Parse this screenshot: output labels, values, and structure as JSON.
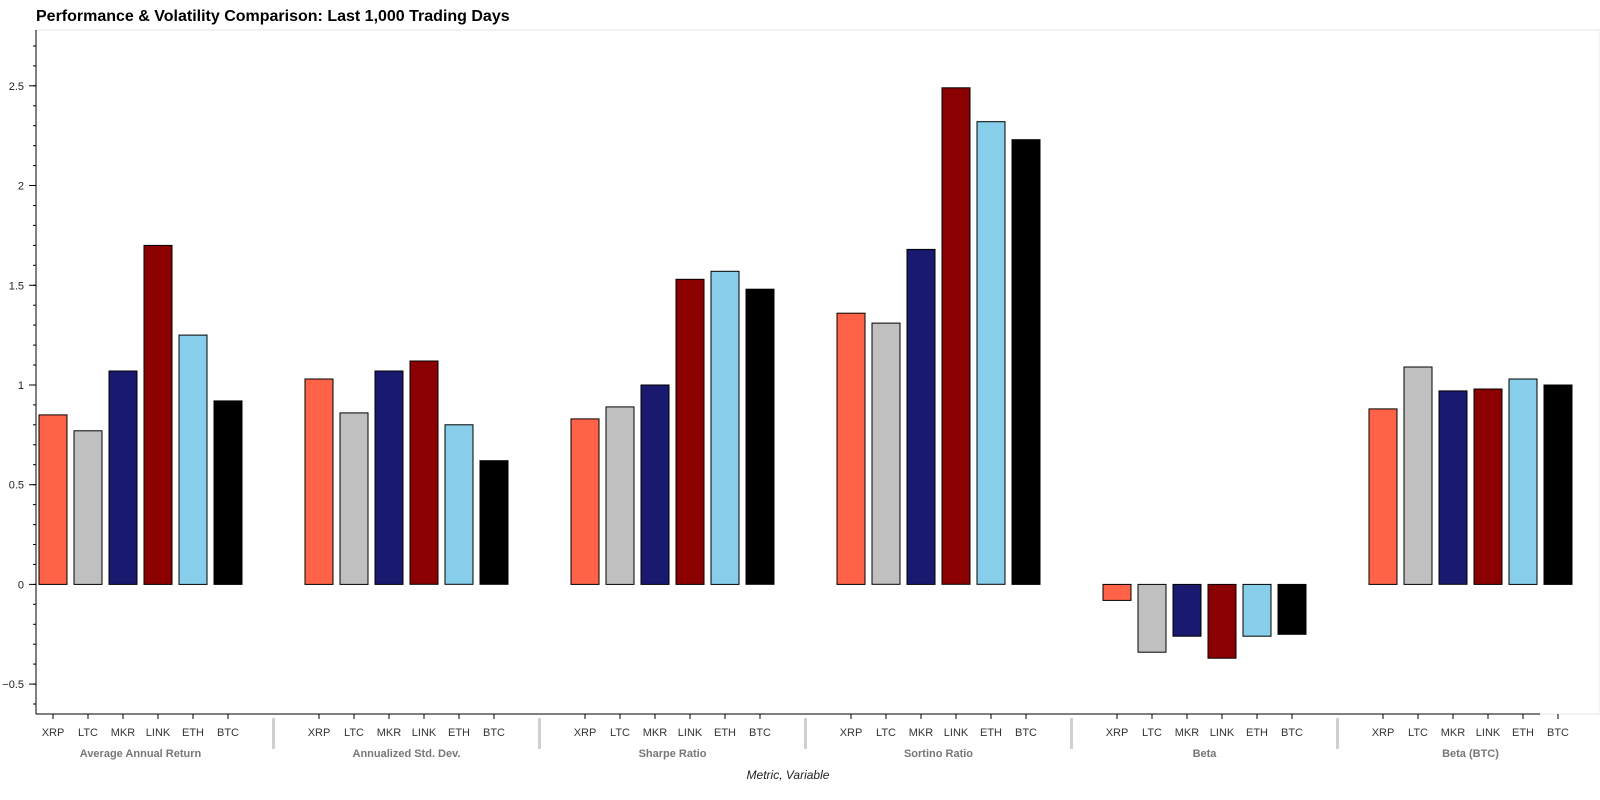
{
  "chart_data": {
    "type": "bar",
    "title": "Performance & Volatility Comparison: Last 1,000 Trading Days",
    "xlabel": "Metric, Variable",
    "ylabel": "",
    "ylim": [
      -0.65,
      2.78
    ],
    "yticks": [
      -0.5,
      0,
      0.5,
      1,
      1.5,
      2,
      2.5
    ],
    "ytick_labels": [
      "−0.5",
      "0",
      "0.5",
      "1",
      "1.5",
      "2",
      "2.5"
    ],
    "grid": false,
    "legend": "none",
    "variables": [
      "XRP",
      "LTC",
      "MKR",
      "LINK",
      "ETH",
      "BTC"
    ],
    "colors": {
      "XRP": "#FF6347",
      "LTC": "#C0C0C0",
      "MKR": "#191970",
      "LINK": "#8B0000",
      "ETH": "#87CEEB",
      "BTC": "#000000"
    },
    "groups": [
      {
        "name": "Average Annual Return",
        "values": [
          0.85,
          0.77,
          1.07,
          1.7,
          1.25,
          0.92
        ]
      },
      {
        "name": "Annualized Std. Dev.",
        "values": [
          1.03,
          0.86,
          1.07,
          1.12,
          0.8,
          0.62
        ]
      },
      {
        "name": "Sharpe Ratio",
        "values": [
          0.83,
          0.89,
          1.0,
          1.53,
          1.57,
          1.48
        ]
      },
      {
        "name": "Sortino Ratio",
        "values": [
          1.36,
          1.31,
          1.68,
          2.49,
          2.32,
          2.23
        ]
      },
      {
        "name": "Beta",
        "values": [
          -0.08,
          -0.34,
          -0.26,
          -0.37,
          -0.26,
          -0.25
        ]
      },
      {
        "name": "Beta (BTC)",
        "values": [
          0.88,
          1.09,
          0.97,
          0.98,
          1.03,
          1.0
        ]
      }
    ]
  }
}
